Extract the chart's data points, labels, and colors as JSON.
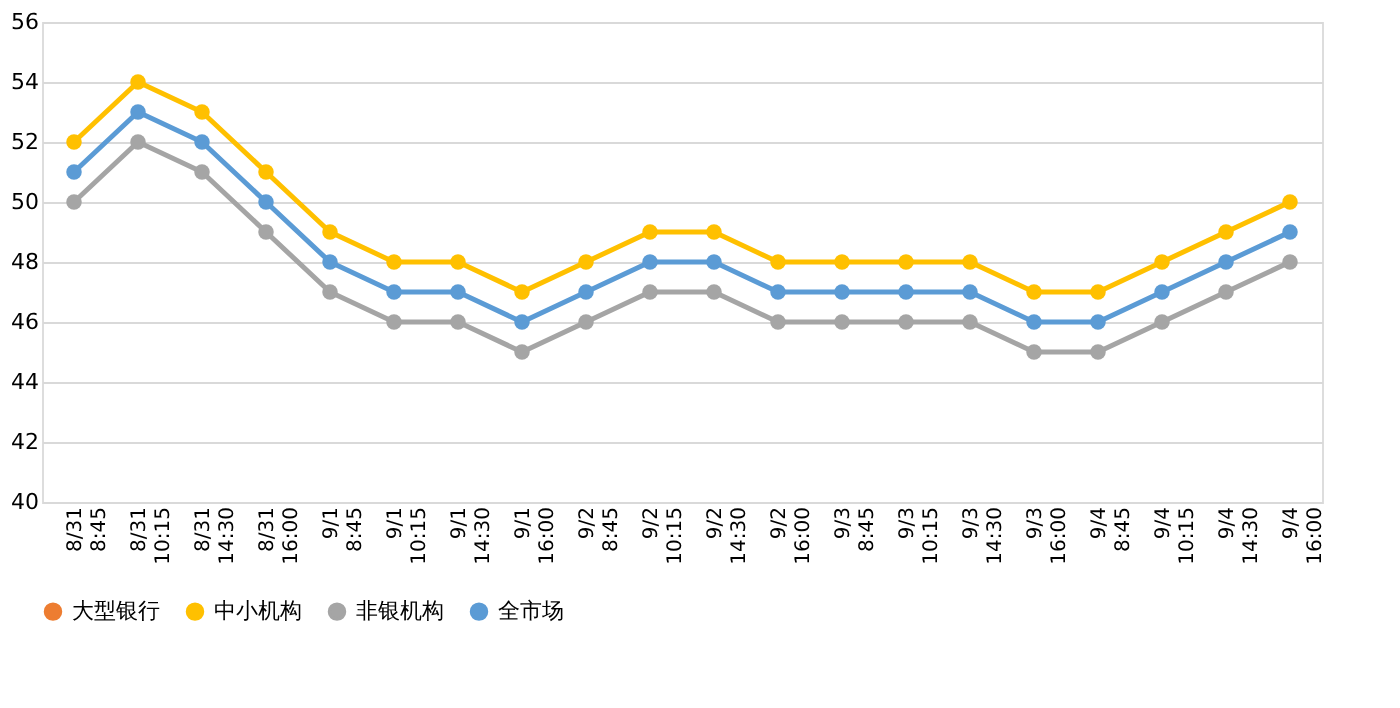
{
  "chart_data": {
    "type": "line",
    "categories": [
      "8/31 8:45",
      "8/31 10:15",
      "8/31 14:30",
      "8/31 16:00",
      "9/1 8:45",
      "9/1 10:15",
      "9/1 14:30",
      "9/1 16:00",
      "9/2 8:45",
      "9/2 10:15",
      "9/2 14:30",
      "9/2 16:00",
      "9/3 8:45",
      "9/3 10:15",
      "9/3 14:30",
      "9/3 16:00",
      "9/4 8:45",
      "9/4 10:15",
      "9/4 14:30",
      "9/4 16:00"
    ],
    "series": [
      {
        "name": "大型银行",
        "color": "#ed7d31",
        "values": [
          null,
          null,
          null,
          null,
          null,
          null,
          null,
          null,
          null,
          null,
          null,
          null,
          null,
          null,
          null,
          null,
          null,
          null,
          null,
          null
        ]
      },
      {
        "name": "中小机构",
        "color": "#ffc000",
        "values": [
          52,
          54,
          53,
          51,
          49,
          48,
          48,
          47,
          48,
          49,
          49,
          48,
          48,
          48,
          48,
          47,
          47,
          48,
          49,
          50
        ]
      },
      {
        "name": "非银机构",
        "color": "#a5a5a5",
        "values": [
          50,
          52,
          51,
          49,
          47,
          46,
          46,
          45,
          46,
          47,
          47,
          46,
          46,
          46,
          46,
          45,
          45,
          46,
          47,
          48
        ]
      },
      {
        "name": "全市场",
        "color": "#5b9bd5",
        "values": [
          51,
          53,
          52,
          50,
          48,
          47,
          47,
          46,
          47,
          48,
          48,
          47,
          47,
          47,
          47,
          46,
          46,
          47,
          48,
          49
        ]
      }
    ],
    "ylim": [
      40,
      56
    ],
    "yticks": [
      40,
      42,
      44,
      46,
      48,
      50,
      52,
      54,
      56
    ],
    "grid": "y",
    "legend": "bottom",
    "marker": "circle",
    "line_style": "solid"
  }
}
